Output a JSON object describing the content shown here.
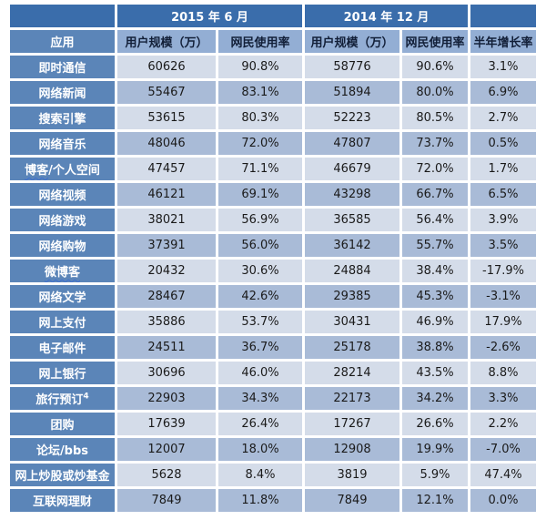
{
  "colors": {
    "period_header_bg": "#3a6dab",
    "subheader_bg": "#93aed4",
    "label_column_bg": "#5b85b8",
    "row_light_bg": "#d4dce9",
    "row_dark_bg": "#a9bbd7",
    "grid_border": "#ffffff",
    "header_text": "#ffffff",
    "subheader_text": "#121f38",
    "data_text": "#1a1a1a",
    "spellcheck_squiggle": "#3f6fd0"
  },
  "chart_data": {
    "type": "table",
    "column_groups": {
      "g2015": "2015 年 6 月",
      "g2014": "2014 年 12 月"
    },
    "columns": [
      "应用",
      "用户规模（万）",
      "网民使用率",
      "用户规模（万）",
      "网民使用率",
      "半年增长率"
    ],
    "rows": [
      {
        "label": "即时通信",
        "users_2015": 60626,
        "rate_2015": "90.8%",
        "users_2014": 58776,
        "rate_2014": "90.6%",
        "growth": "3.1%"
      },
      {
        "label": "网络新闻",
        "users_2015": 55467,
        "rate_2015": "83.1%",
        "users_2014": 51894,
        "rate_2014": "80.0%",
        "growth": "6.9%"
      },
      {
        "label": "搜索引擎",
        "users_2015": 53615,
        "rate_2015": "80.3%",
        "users_2014": 52223,
        "rate_2014": "80.5%",
        "growth": "2.7%"
      },
      {
        "label": "网络音乐",
        "users_2015": 48046,
        "rate_2015": "72.0%",
        "users_2014": 47807,
        "rate_2014": "73.7%",
        "growth": "0.5%"
      },
      {
        "label": "博客/个人空间",
        "wavy_part": "博客",
        "users_2015": 47457,
        "rate_2015": "71.1%",
        "users_2014": 46679,
        "rate_2014": "72.0%",
        "growth": "1.7%"
      },
      {
        "label": "网络视频",
        "users_2015": 46121,
        "rate_2015": "69.1%",
        "users_2014": 43298,
        "rate_2014": "66.7%",
        "growth": "6.5%"
      },
      {
        "label": "网络游戏",
        "users_2015": 38021,
        "rate_2015": "56.9%",
        "users_2014": 36585,
        "rate_2014": "56.4%",
        "growth": "3.9%"
      },
      {
        "label": "网络购物",
        "users_2015": 37391,
        "rate_2015": "56.0%",
        "users_2014": 36142,
        "rate_2014": "55.7%",
        "growth": "3.5%"
      },
      {
        "label": "微博客",
        "wavy_part": "微博客",
        "users_2015": 20432,
        "rate_2015": "30.6%",
        "users_2014": 24884,
        "rate_2014": "38.4%",
        "growth": "-17.9%"
      },
      {
        "label": "网络文学",
        "users_2015": 28467,
        "rate_2015": "42.6%",
        "users_2014": 29385,
        "rate_2014": "45.3%",
        "growth": "-3.1%"
      },
      {
        "label": "网上支付",
        "users_2015": 35886,
        "rate_2015": "53.7%",
        "users_2014": 30431,
        "rate_2014": "46.9%",
        "growth": "17.9%"
      },
      {
        "label": "电子邮件",
        "users_2015": 24511,
        "rate_2015": "36.7%",
        "users_2014": 25178,
        "rate_2014": "38.8%",
        "growth": "-2.6%"
      },
      {
        "label": "网上银行",
        "users_2015": 30696,
        "rate_2015": "46.0%",
        "users_2014": 28214,
        "rate_2014": "43.5%",
        "growth": "8.8%"
      },
      {
        "label": "旅行预订",
        "sup": "4",
        "users_2015": 22903,
        "rate_2015": "34.3%",
        "users_2014": 22173,
        "rate_2014": "34.2%",
        "growth": "3.3%"
      },
      {
        "label": "团购",
        "users_2015": 17639,
        "rate_2015": "26.4%",
        "users_2014": 17267,
        "rate_2014": "26.6%",
        "growth": "2.2%"
      },
      {
        "label": "论坛/bbs",
        "users_2015": 12007,
        "rate_2015": "18.0%",
        "users_2014": 12908,
        "rate_2014": "19.9%",
        "growth": "-7.0%"
      },
      {
        "label": "网上炒股或炒基金",
        "users_2015": 5628,
        "rate_2015": "8.4%",
        "users_2014": 3819,
        "rate_2014": "5.9%",
        "growth": "47.4%"
      },
      {
        "label": "互联网理财",
        "users_2015": 7849,
        "rate_2015": "11.8%",
        "users_2014": 7849,
        "rate_2014": "12.1%",
        "growth": "0.0%"
      }
    ]
  }
}
